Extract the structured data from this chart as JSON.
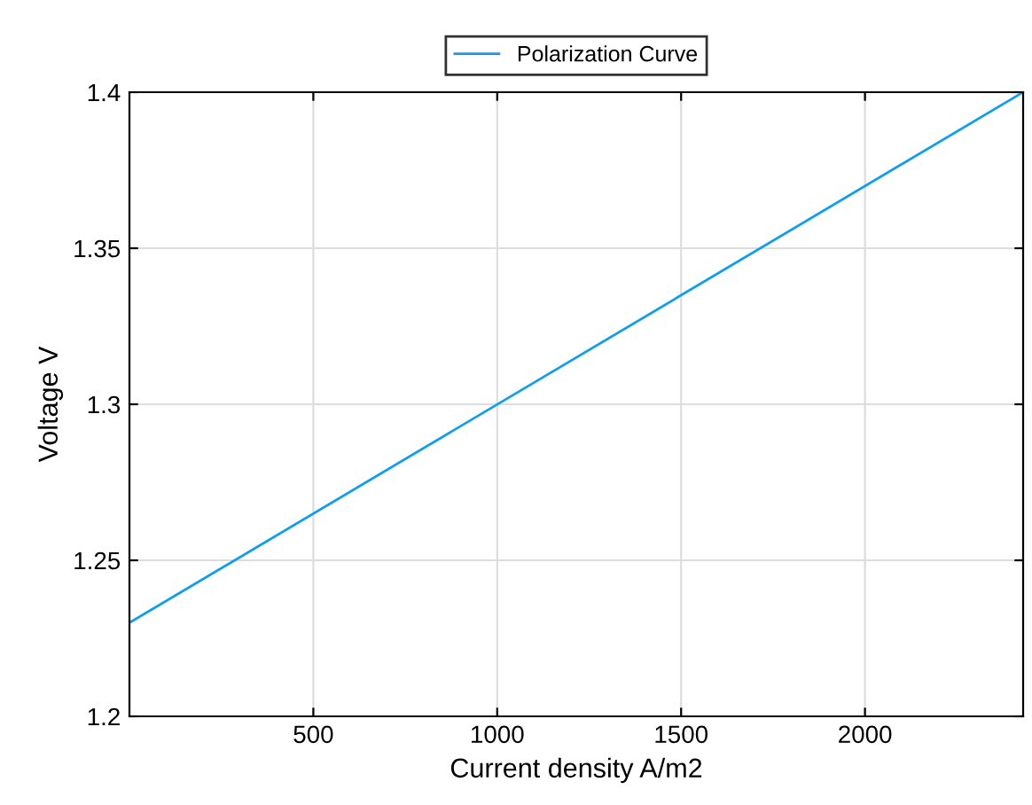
{
  "chart_data": {
    "type": "line",
    "xlabel": "Current density A/m2",
    "ylabel": "Voltage V",
    "x": [
      0,
      2430
    ],
    "series": [
      {
        "name": "Polarization Curve",
        "color": "#0d9ef0",
        "values": [
          1.23,
          1.4
        ]
      }
    ],
    "xlim": [
      0,
      2430
    ],
    "xticks": [
      500,
      1000,
      1500,
      2000
    ],
    "ylim": [
      1.2,
      1.4
    ],
    "yticks": [
      1.2,
      1.25,
      1.3,
      1.35,
      1.4
    ],
    "grid": true,
    "legend": "top",
    "marker": "none",
    "line_style": "solid"
  }
}
